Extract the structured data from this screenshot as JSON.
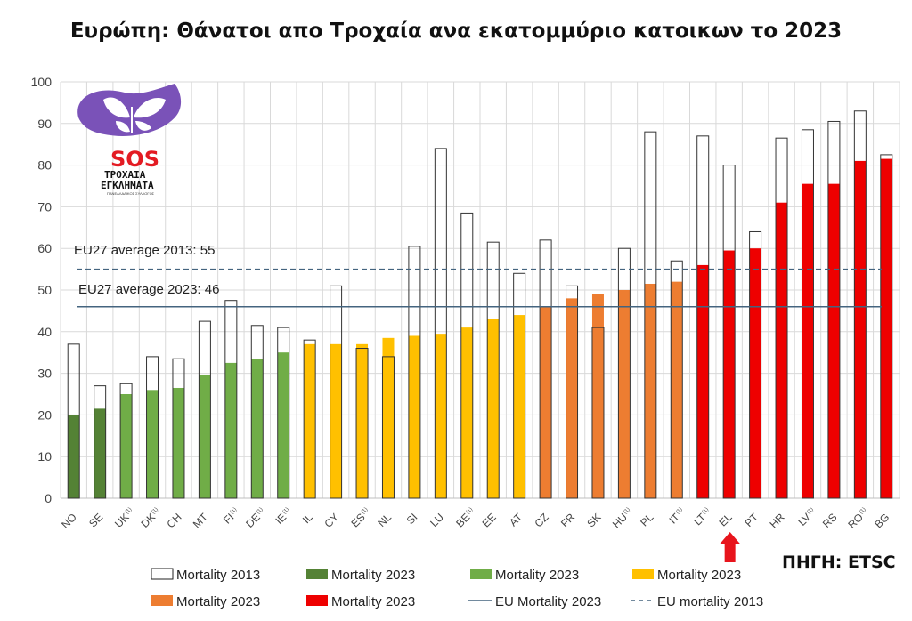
{
  "title": "Ευρώπη: Θάνατοι απο Τροχαία ανα εκατομμύριο κατοικων το 2023",
  "source_label": "ΠΗΓΗ: ETSC",
  "logo": {
    "line1": "SOS",
    "line2": "ΤΡΟΧΑΙΑ",
    "line3": "ΕΓΚΛΗΜΑΤΑ",
    "line4": "ΠΑΝΕΛΛΑΔΙΚΟΣ ΣΥΛΛΟΓΟΣ"
  },
  "colors": {
    "dark_green": "#548235",
    "green": "#70ad47",
    "yellow": "#ffc000",
    "orange": "#ed7d31",
    "red": "#ee0000",
    "avg_line": "#44647f",
    "grid": "#d9d9d9"
  },
  "chart_data": {
    "type": "bar",
    "title": "Ευρώπη: Θάνατοι απο Τροχαία ανα εκατομμύριο κατοικων το 2023",
    "ylim": [
      0,
      100
    ],
    "yticks": [
      0,
      10,
      20,
      30,
      40,
      50,
      60,
      70,
      80,
      90,
      100
    ],
    "grid": true,
    "categories": [
      {
        "code": "NO",
        "sup": "",
        "v2013": 37,
        "v2023": 20,
        "group": "dark_green"
      },
      {
        "code": "SE",
        "sup": "",
        "v2013": 27,
        "v2023": 21.5,
        "group": "dark_green"
      },
      {
        "code": "UK",
        "sup": "(1)",
        "v2013": 27.5,
        "v2023": 25,
        "group": "green"
      },
      {
        "code": "DK",
        "sup": "(1)",
        "v2013": 34,
        "v2023": 26,
        "group": "green"
      },
      {
        "code": "CH",
        "sup": "",
        "v2013": 33.5,
        "v2023": 26.5,
        "group": "green"
      },
      {
        "code": "MT",
        "sup": "",
        "v2013": 42.5,
        "v2023": 29.5,
        "group": "green"
      },
      {
        "code": "FI",
        "sup": "(1)",
        "v2013": 47.5,
        "v2023": 32.5,
        "group": "green"
      },
      {
        "code": "DE",
        "sup": "(1)",
        "v2013": 41.5,
        "v2023": 33.5,
        "group": "green"
      },
      {
        "code": "IE",
        "sup": "(1)",
        "v2013": 41,
        "v2023": 35,
        "group": "green"
      },
      {
        "code": "IL",
        "sup": "",
        "v2013": 38,
        "v2023": 37,
        "group": "yellow"
      },
      {
        "code": "CY",
        "sup": "",
        "v2013": 51,
        "v2023": 37,
        "group": "yellow"
      },
      {
        "code": "ES",
        "sup": "(1)",
        "v2013": 36,
        "v2023": 37,
        "group": "yellow"
      },
      {
        "code": "NL",
        "sup": "",
        "v2013": 34,
        "v2023": 38.5,
        "group": "yellow"
      },
      {
        "code": "SI",
        "sup": "",
        "v2013": 60.5,
        "v2023": 39,
        "group": "yellow"
      },
      {
        "code": "LU",
        "sup": "",
        "v2013": 84,
        "v2023": 39.5,
        "group": "yellow"
      },
      {
        "code": "BE",
        "sup": "(1)",
        "v2013": 68.5,
        "v2023": 41,
        "group": "yellow"
      },
      {
        "code": "EE",
        "sup": "",
        "v2013": 61.5,
        "v2023": 43,
        "group": "yellow"
      },
      {
        "code": "AT",
        "sup": "",
        "v2013": 54,
        "v2023": 44,
        "group": "yellow"
      },
      {
        "code": "CZ",
        "sup": "",
        "v2013": 62,
        "v2023": 46,
        "group": "orange"
      },
      {
        "code": "FR",
        "sup": "",
        "v2013": 51,
        "v2023": 48,
        "group": "orange"
      },
      {
        "code": "SK",
        "sup": "",
        "v2013": 41,
        "v2023": 49,
        "group": "orange"
      },
      {
        "code": "HU",
        "sup": "(1)",
        "v2013": 60,
        "v2023": 50,
        "group": "orange"
      },
      {
        "code": "PL",
        "sup": "",
        "v2013": 88,
        "v2023": 51.5,
        "group": "orange"
      },
      {
        "code": "IT",
        "sup": "(1)",
        "v2013": 57,
        "v2023": 52,
        "group": "orange"
      },
      {
        "code": "LT",
        "sup": "(1)",
        "v2013": 87,
        "v2023": 56,
        "group": "red"
      },
      {
        "code": "EL",
        "sup": "",
        "v2013": 80,
        "v2023": 59.5,
        "group": "red"
      },
      {
        "code": "PT",
        "sup": "",
        "v2013": 64,
        "v2023": 60,
        "group": "red"
      },
      {
        "code": "HR",
        "sup": "",
        "v2013": 86.5,
        "v2023": 71,
        "group": "red"
      },
      {
        "code": "LV",
        "sup": "(1)",
        "v2013": 88.5,
        "v2023": 75.5,
        "group": "red"
      },
      {
        "code": "RS",
        "sup": "",
        "v2013": 90.5,
        "v2023": 75.5,
        "group": "red"
      },
      {
        "code": "RO",
        "sup": "(1)",
        "v2013": 93,
        "v2023": 81,
        "group": "red"
      },
      {
        "code": "BG",
        "sup": "",
        "v2013": 82.5,
        "v2023": 81.5,
        "group": "red"
      }
    ],
    "averages": [
      {
        "label": "EU27 average 2013: 55",
        "value": 55,
        "style": "dashed"
      },
      {
        "label": "EU27 average 2023: 46",
        "value": 46,
        "style": "solid"
      }
    ],
    "highlight": "EL",
    "legend": [
      {
        "label": "Mortality 2013",
        "kind": "outline"
      },
      {
        "label": "Mortality 2023",
        "kind": "dark_green"
      },
      {
        "label": "Mortality 2023",
        "kind": "green"
      },
      {
        "label": "Mortality 2023",
        "kind": "yellow"
      },
      {
        "label": "Mortality 2023",
        "kind": "orange"
      },
      {
        "label": "Mortality 2023",
        "kind": "red"
      },
      {
        "label": "EU Mortality 2023",
        "kind": "solid-line"
      },
      {
        "label": "EU mortality 2013",
        "kind": "dashed-line"
      }
    ]
  }
}
